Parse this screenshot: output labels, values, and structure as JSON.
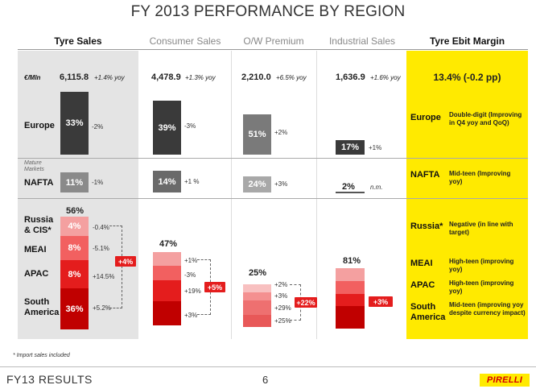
{
  "title": "FY 2013 PERFORMANCE BY REGION",
  "columns": {
    "tyre_sales": "Tyre Sales",
    "consumer": "Consumer Sales",
    "ow": "O/W Premium",
    "industrial": "Industrial Sales",
    "ebit": "Tyre Ebit Margin"
  },
  "totals": {
    "unit": "€/Mln",
    "tyre_value": "6,115.8",
    "tyre_yoy": "+1.4% yoy",
    "consumer_value": "4,478.9",
    "consumer_yoy": "+1.3% yoy",
    "ow_value": "2,210.0",
    "ow_yoy": "+6.5% yoy",
    "industrial_value": "1,636.9",
    "industrial_yoy": "+1.6% yoy",
    "ebit_value": "13.4% (-0.2 pp)"
  },
  "europe": {
    "label": "Europe",
    "tyre_share": "33%",
    "tyre_chg": "-2%",
    "consumer_share": "39%",
    "consumer_chg": "-3%",
    "ow_share": "51%",
    "ow_chg": "+2%",
    "industrial_share": "17%",
    "industrial_chg": "+1%"
  },
  "mature_markets": "Mature Markets",
  "nafta": {
    "label": "NAFTA",
    "tyre_share": "11%",
    "tyre_chg": "-1%",
    "consumer_share": "14%",
    "consumer_chg": "+1 %",
    "ow_share": "24%",
    "ow_chg": "+3%",
    "industrial_share": "2%",
    "industrial_chg": "n.m."
  },
  "emerging": {
    "tyre_total": "56%",
    "consumer_total": "47%",
    "ow_total": "25%",
    "industrial_total": "81%",
    "russia_label": "Russia & CIS*",
    "russia_share": "4%",
    "russia_chg": "-0.4%",
    "meai_label": "MEAI",
    "meai_share": "8%",
    "meai_chg": "-5.1%",
    "apac_label": "APAC",
    "apac_share": "8%",
    "apac_chg": "+14.5%",
    "sa_label": "South America",
    "sa_share": "36%",
    "sa_chg": "+5.2%",
    "tyre_badge": "+4%",
    "consumer_chgs": [
      "+1%",
      "-3%",
      "+19%",
      "+3%"
    ],
    "consumer_badge": "+5%",
    "ow_chgs": [
      "+2%",
      "+3%",
      "+29%",
      "+25%"
    ],
    "ow_badge": "+22%",
    "industrial_badge": "+3%"
  },
  "ebit": {
    "europe_label": "Europe",
    "europe_desc": "Double-digit (Improving in Q4 yoy and QoQ)",
    "nafta_label": "NAFTA",
    "nafta_desc": "Mid-teen (Improving yoy)",
    "russia_label": "Russia*",
    "russia_desc": "Negative (in line with target)",
    "meai_label": "MEAI",
    "meai_desc": "High-teen (improving yoy)",
    "apac_label": "APAC",
    "apac_desc": "High-teen (improving yoy)",
    "sa_label": "South America",
    "sa_desc": "Mid-teen (improving yoy despite currency impact)"
  },
  "footnote": "* Import sales included",
  "footer": {
    "left": "FY13 RESULTS",
    "page": "6",
    "brand": "PIRELLI"
  },
  "colors": {
    "red": "#e41d1d",
    "darkred": "#c00000",
    "yellow": "#ffea00",
    "grey": "#e4e4e4"
  }
}
